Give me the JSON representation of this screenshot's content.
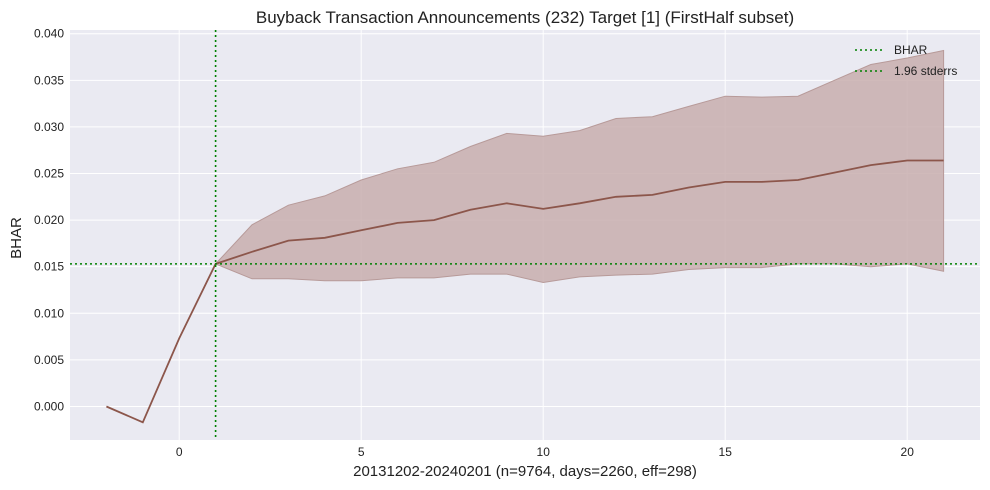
{
  "chart_data": {
    "type": "line",
    "title": "Buyback Transaction Announcements (232) Target [1] (FirstHalf subset)",
    "xlabel": "20131202-20240201 (n=9764, days=2260, eff=298)",
    "ylabel": "BHAR",
    "xlim": [
      -3,
      22
    ],
    "ylim": [
      -0.0036,
      0.0404
    ],
    "xticks": [
      0,
      5,
      10,
      15,
      20
    ],
    "xtick_labels": [
      "0",
      "5",
      "10",
      "15",
      "20"
    ],
    "yticks": [
      0.0,
      0.005,
      0.01,
      0.015,
      0.02,
      0.025,
      0.03,
      0.035,
      0.04
    ],
    "ytick_labels": [
      "0.000",
      "0.005",
      "0.010",
      "0.015",
      "0.020",
      "0.025",
      "0.030",
      "0.035",
      "0.040"
    ],
    "grid": true,
    "legend_position": "top-right",
    "x": [
      -2,
      -1,
      0,
      1,
      2,
      3,
      4,
      5,
      6,
      7,
      8,
      9,
      10,
      11,
      12,
      13,
      14,
      15,
      16,
      17,
      18,
      19,
      20,
      21
    ],
    "series": [
      {
        "name": "BHAR",
        "values": [
          0.0,
          -0.0017,
          0.0073,
          0.0153,
          0.0166,
          0.0178,
          0.0181,
          0.0189,
          0.0197,
          0.02,
          0.0211,
          0.0218,
          0.0212,
          0.0218,
          0.0225,
          0.0227,
          0.0235,
          0.0241,
          0.0241,
          0.0243,
          0.0251,
          0.0259,
          0.0264,
          0.0264
        ]
      }
    ],
    "band": {
      "name": "1.96 stderrs",
      "x": [
        1,
        2,
        3,
        4,
        5,
        6,
        7,
        8,
        9,
        10,
        11,
        12,
        13,
        14,
        15,
        16,
        17,
        18,
        19,
        20,
        21
      ],
      "upper": [
        0.0153,
        0.0195,
        0.0216,
        0.0226,
        0.0243,
        0.0255,
        0.0262,
        0.0279,
        0.0293,
        0.029,
        0.0296,
        0.0309,
        0.0311,
        0.0322,
        0.0333,
        0.0332,
        0.0333,
        0.035,
        0.0367,
        0.0374,
        0.0382
      ],
      "lower": [
        0.0153,
        0.0137,
        0.0137,
        0.0135,
        0.0135,
        0.0138,
        0.0138,
        0.0142,
        0.0142,
        0.0133,
        0.0139,
        0.0141,
        0.0142,
        0.0147,
        0.0149,
        0.0149,
        0.0153,
        0.0153,
        0.015,
        0.0153,
        0.0145
      ]
    },
    "reference_lines": {
      "horizontal_y": 0.0153,
      "vertical_x": 1
    },
    "legend": [
      {
        "label": "BHAR",
        "style": "dotted",
        "color": "#008000"
      },
      {
        "label": "1.96 stderrs",
        "style": "dotted",
        "color": "#008000"
      }
    ],
    "colors": {
      "plot_background": "#eaeaf2",
      "line": "#8c564b",
      "band_fill": "#c8aeae",
      "band_edge": "#b79a99",
      "reference": "#008000"
    }
  }
}
